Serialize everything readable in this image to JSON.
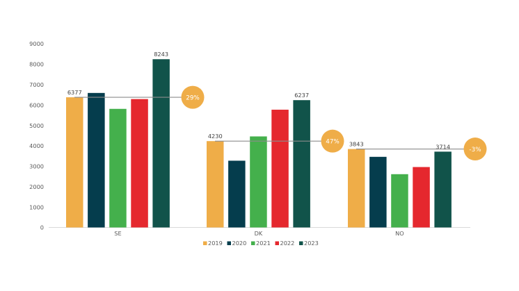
{
  "chart_data": {
    "type": "bar",
    "categories": [
      "SE",
      "DK",
      "NO"
    ],
    "series": [
      {
        "name": "2019",
        "color": "#EFAD48",
        "values": [
          6377,
          4230,
          3843
        ]
      },
      {
        "name": "2020",
        "color": "#053D4D",
        "values": [
          6590,
          3270,
          3460
        ]
      },
      {
        "name": "2021",
        "color": "#44B04C",
        "values": [
          5810,
          4460,
          2610
        ]
      },
      {
        "name": "2022",
        "color": "#E5282E",
        "values": [
          6290,
          5770,
          2960
        ]
      },
      {
        "name": "2023",
        "color": "#11534A",
        "values": [
          8243,
          6237,
          3714
        ]
      }
    ],
    "data_labels": [
      {
        "category": "SE",
        "series": "2019",
        "text": "6377"
      },
      {
        "category": "SE",
        "series": "2023",
        "text": "8243"
      },
      {
        "category": "DK",
        "series": "2019",
        "text": "4230"
      },
      {
        "category": "DK",
        "series": "2023",
        "text": "6237"
      },
      {
        "category": "NO",
        "series": "2019",
        "text": "3843"
      },
      {
        "category": "NO",
        "series": "2023",
        "text": "3714"
      }
    ],
    "change_badges": [
      {
        "category": "SE",
        "text": "29%",
        "reference_value": 6377,
        "color": "#EFAD48"
      },
      {
        "category": "DK",
        "text": "47%",
        "reference_value": 4230,
        "color": "#EFAD48"
      },
      {
        "category": "NO",
        "text": "-3%",
        "reference_value": 3843,
        "color": "#EFAD48"
      }
    ],
    "ylim": [
      0,
      9000
    ],
    "yticks": [
      0,
      1000,
      2000,
      3000,
      4000,
      5000,
      6000,
      7000,
      8000,
      9000
    ],
    "title": "",
    "xlabel": "",
    "ylabel": "",
    "grid": false,
    "legend_position": "bottom"
  }
}
